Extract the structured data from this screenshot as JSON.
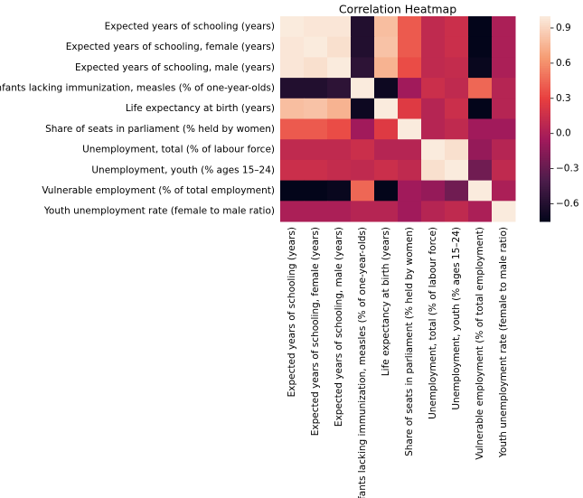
{
  "chart_data": {
    "type": "heatmap",
    "title": "Correlation Heatmap",
    "categories": [
      "Expected years of schooling (years)",
      "Expected years of schooling, female (years)",
      "Expected years of schooling, male (years)",
      "Infants lacking immunization, measles (% of one-year-olds)",
      "Life expectancy at birth (years)",
      "Share of seats in parliament (% held by women)",
      "Unemployment, total (% of labour force)",
      "Unemployment, youth (% ages 15–24)",
      "Vulnerable employment (% of total employment)",
      "Youth unemployment rate (female to male ratio)"
    ],
    "values": [
      [
        1,
        0.98,
        0.98,
        -0.6,
        0.8,
        0.4,
        0.1,
        0.15,
        -0.75,
        0.0
      ],
      [
        0.98,
        1,
        0.95,
        -0.6,
        0.82,
        0.4,
        0.1,
        0.15,
        -0.75,
        0.0
      ],
      [
        0.98,
        0.95,
        1,
        -0.55,
        0.75,
        0.35,
        0.1,
        0.12,
        -0.72,
        0.0
      ],
      [
        -0.6,
        -0.6,
        -0.55,
        1,
        -0.7,
        -0.05,
        0.15,
        0.1,
        0.45,
        0.05
      ],
      [
        0.8,
        0.82,
        0.75,
        -0.7,
        1,
        0.25,
        0.05,
        0.15,
        -0.75,
        0.05
      ],
      [
        0.4,
        0.4,
        0.35,
        -0.05,
        0.25,
        1,
        0.05,
        0.1,
        -0.05,
        -0.05
      ],
      [
        0.1,
        0.1,
        0.1,
        0.15,
        0.05,
        0.05,
        1,
        0.95,
        -0.1,
        0.05
      ],
      [
        0.15,
        0.15,
        0.12,
        0.1,
        0.15,
        0.1,
        0.95,
        1,
        -0.25,
        0.1
      ],
      [
        -0.75,
        -0.75,
        -0.72,
        0.45,
        -0.75,
        -0.05,
        -0.1,
        -0.25,
        1,
        0.0
      ],
      [
        0.0,
        0.0,
        0.0,
        0.05,
        0.05,
        -0.05,
        0.05,
        0.1,
        0.0,
        1
      ]
    ],
    "clim": [
      -0.75,
      1.0
    ],
    "colorscale": [
      "#03051a",
      "#4c1d4b",
      "#a11a5b",
      "#e83f3f",
      "#f69c73",
      "#faebdd"
    ],
    "cticks": [
      0.9,
      0.6,
      0.3,
      {
        "value": 0,
        "label": "0.0"
      },
      {
        "value": -0.3,
        "label": "−0.3"
      },
      {
        "value": -0.6,
        "label": "−0.6"
      }
    ]
  }
}
